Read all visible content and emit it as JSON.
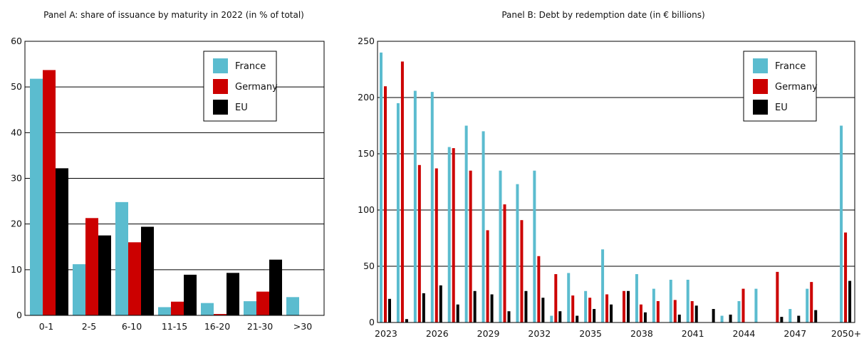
{
  "colors": {
    "france": "#5bbccf",
    "germany": "#cc0000",
    "eu": "#000000"
  },
  "chart_data": [
    {
      "type": "bar",
      "title": "Panel A: share of issuance by maturity in 2022 (in % of total)",
      "categories": [
        "0-1",
        "2-5",
        "6-10",
        "11-15",
        "16-20",
        "21-30",
        ">30"
      ],
      "ylim": [
        0,
        60
      ],
      "yticks": [
        0,
        10,
        20,
        30,
        40,
        50,
        60
      ],
      "grid": true,
      "legend_position": "top-right",
      "series": [
        {
          "name": "France",
          "color_key": "france",
          "values": [
            51.8,
            11.2,
            24.8,
            1.8,
            2.7,
            3.1,
            4.0
          ]
        },
        {
          "name": "Germany",
          "color_key": "germany",
          "values": [
            53.7,
            21.3,
            16.0,
            3.0,
            0.3,
            5.2,
            null
          ]
        },
        {
          "name": "EU",
          "color_key": "eu",
          "values": [
            32.2,
            17.5,
            19.4,
            8.9,
            9.3,
            12.2,
            null
          ]
        }
      ]
    },
    {
      "type": "bar",
      "title": "Panel B: Debt by redemption date (in € billions)",
      "categories": [
        "2023",
        "2024",
        "2025",
        "2026",
        "2027",
        "2028",
        "2029",
        "2030",
        "2031",
        "2032",
        "2033",
        "2034",
        "2035",
        "2036",
        "2037",
        "2038",
        "2039",
        "2040",
        "2041",
        "2042",
        "2043",
        "2044",
        "2045",
        "2046",
        "2047",
        "2048",
        "2049",
        "2050+"
      ],
      "xtick_labels": [
        "2023",
        "2026",
        "2029",
        "2032",
        "2035",
        "2038",
        "2041",
        "2044",
        "2047",
        "2050+"
      ],
      "ylim": [
        0,
        250
      ],
      "yticks": [
        0,
        50,
        100,
        150,
        200,
        250
      ],
      "grid": true,
      "legend_position": "top-right",
      "series": [
        {
          "name": "France",
          "color_key": "france",
          "values": [
            240,
            195,
            206,
            205,
            156,
            175,
            170,
            135,
            123,
            135,
            6,
            44,
            28,
            65,
            0,
            43,
            30,
            38,
            38,
            0,
            6,
            19,
            30,
            0,
            12,
            30,
            0,
            175
          ]
        },
        {
          "name": "Germany",
          "color_key": "germany",
          "values": [
            210,
            232,
            140,
            137,
            155,
            135,
            82,
            105,
            91,
            59,
            43,
            24,
            22,
            25,
            28,
            16,
            19,
            20,
            19,
            0,
            0,
            30,
            0,
            45,
            0,
            36,
            0,
            80
          ]
        },
        {
          "name": "EU",
          "color_key": "eu",
          "values": [
            21,
            3,
            26,
            33,
            16,
            28,
            25,
            10,
            28,
            22,
            10,
            6,
            12,
            16,
            28,
            9,
            0,
            7,
            15,
            12,
            7,
            0,
            0,
            5,
            6,
            11,
            0,
            37
          ]
        }
      ]
    }
  ]
}
